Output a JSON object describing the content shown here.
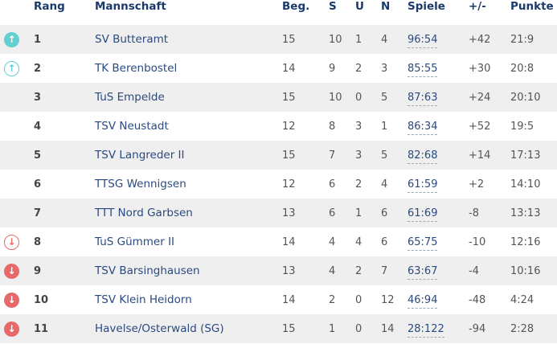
{
  "headers": {
    "icon": "",
    "rang": "Rang",
    "team": "Mannschaft",
    "beg": "Beg.",
    "s": "S",
    "u": "U",
    "n": "N",
    "spiele": "Spiele",
    "diff": "+/-",
    "punkte": "Punkte"
  },
  "colors": {
    "promotion": "#62cfd0",
    "relegation": "#e8696a",
    "header": "#1b3a6b"
  },
  "rows": [
    {
      "icon": "arrow-up-filled",
      "rang": "1",
      "team": "SV Butteramt",
      "beg": "15",
      "s": "10",
      "u": "1",
      "n": "4",
      "spiele": "96:54",
      "diff": "+42",
      "punkte": "21:9"
    },
    {
      "icon": "arrow-up-outline",
      "rang": "2",
      "team": "TK Berenbostel",
      "beg": "14",
      "s": "9",
      "u": "2",
      "n": "3",
      "spiele": "85:55",
      "diff": "+30",
      "punkte": "20:8"
    },
    {
      "icon": "",
      "rang": "3",
      "team": "TuS Empelde",
      "beg": "15",
      "s": "10",
      "u": "0",
      "n": "5",
      "spiele": "87:63",
      "diff": "+24",
      "punkte": "20:10"
    },
    {
      "icon": "",
      "rang": "4",
      "team": "TSV Neustadt",
      "beg": "12",
      "s": "8",
      "u": "3",
      "n": "1",
      "spiele": "86:34",
      "diff": "+52",
      "punkte": "19:5"
    },
    {
      "icon": "",
      "rang": "5",
      "team": "TSV Langreder II",
      "beg": "15",
      "s": "7",
      "u": "3",
      "n": "5",
      "spiele": "82:68",
      "diff": "+14",
      "punkte": "17:13"
    },
    {
      "icon": "",
      "rang": "6",
      "team": "TTSG Wennigsen",
      "beg": "12",
      "s": "6",
      "u": "2",
      "n": "4",
      "spiele": "61:59",
      "diff": "+2",
      "punkte": "14:10"
    },
    {
      "icon": "",
      "rang": "7",
      "team": "TTT Nord Garbsen",
      "beg": "13",
      "s": "6",
      "u": "1",
      "n": "6",
      "spiele": "61:69",
      "diff": "-8",
      "punkte": "13:13"
    },
    {
      "icon": "arrow-down-outline",
      "rang": "8",
      "team": "TuS Gümmer II",
      "beg": "14",
      "s": "4",
      "u": "4",
      "n": "6",
      "spiele": "65:75",
      "diff": "-10",
      "punkte": "12:16"
    },
    {
      "icon": "arrow-down-filled",
      "rang": "9",
      "team": "TSV Barsinghausen",
      "beg": "13",
      "s": "4",
      "u": "2",
      "n": "7",
      "spiele": "63:67",
      "diff": "-4",
      "punkte": "10:16"
    },
    {
      "icon": "arrow-down-filled",
      "rang": "10",
      "team": "TSV Klein Heidorn",
      "beg": "14",
      "s": "2",
      "u": "0",
      "n": "12",
      "spiele": "46:94",
      "diff": "-48",
      "punkte": "4:24"
    },
    {
      "icon": "arrow-down-filled",
      "rang": "11",
      "team": "Havelse/Osterwald (SG)",
      "beg": "15",
      "s": "1",
      "u": "0",
      "n": "14",
      "spiele": "28:122",
      "diff": "-94",
      "punkte": "2:28"
    }
  ]
}
